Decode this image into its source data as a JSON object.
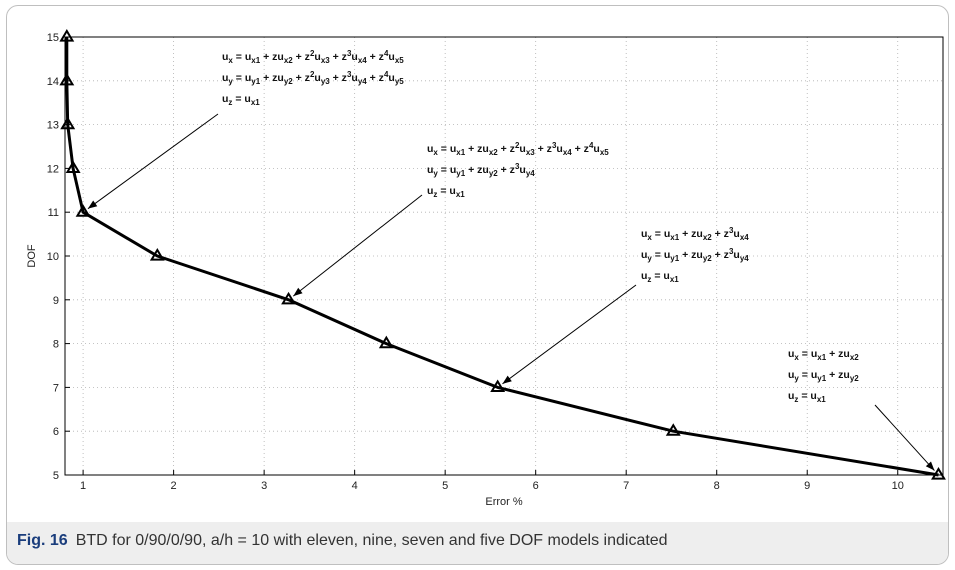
{
  "caption": {
    "label": "Fig. 16",
    "text": "BTD for 0/90/0/90, a/h = 10 with eleven, nine, seven and five DOF models indicated"
  },
  "chart_data": {
    "type": "line",
    "title": "",
    "xlabel": "Error %",
    "ylabel": "DOF",
    "xlim": [
      0.8,
      10.5
    ],
    "ylim": [
      5,
      15
    ],
    "xticks": [
      1,
      2,
      3,
      4,
      5,
      6,
      7,
      8,
      9,
      10
    ],
    "yticks": [
      5,
      6,
      7,
      8,
      9,
      10,
      11,
      12,
      13,
      14,
      15
    ],
    "grid": "dotted",
    "series": [
      {
        "marker": "triangle",
        "color": "#000000",
        "points": [
          {
            "x": 0.82,
            "y": 15
          },
          {
            "x": 0.82,
            "y": 14
          },
          {
            "x": 0.83,
            "y": 13
          },
          {
            "x": 0.89,
            "y": 12
          },
          {
            "x": 1.0,
            "y": 11
          },
          {
            "x": 1.82,
            "y": 10
          },
          {
            "x": 3.27,
            "y": 9
          },
          {
            "x": 4.35,
            "y": 8
          },
          {
            "x": 5.58,
            "y": 7
          },
          {
            "x": 7.52,
            "y": 6
          },
          {
            "x": 10.45,
            "y": 5
          }
        ]
      }
    ],
    "annotations": [
      {
        "target": {
          "x": 1.0,
          "y": 11
        },
        "lines": [
          "u_x = u_x1 + zu_x2 + z^2u_x3 + z^3u_x4 + z^4u_x5",
          "u_y = u_y1 + zu_y2 + z^2u_y3 + z^3u_y4 + z^4u_y5",
          "u_z = u_x1"
        ]
      },
      {
        "target": {
          "x": 3.27,
          "y": 9
        },
        "lines": [
          "u_x = u_x1 + zu_x2 + z^2u_x3 + z^3u_x4 + z^4u_x5",
          "u_y = u_y1 + zu_y2 + z^3u_y4",
          "u_z = u_x1"
        ]
      },
      {
        "target": {
          "x": 5.58,
          "y": 7
        },
        "lines": [
          "u_x = u_x1 + zu_x2 + z^3u_x4",
          "u_y = u_y1 + zu_y2 + z^3u_y4",
          "u_z = u_x1"
        ]
      },
      {
        "target": {
          "x": 10.45,
          "y": 5
        },
        "lines": [
          "u_x = u_x1 + zu_x2",
          "u_y = u_y1 + zu_y2",
          "u_z = u_x1"
        ]
      }
    ]
  }
}
